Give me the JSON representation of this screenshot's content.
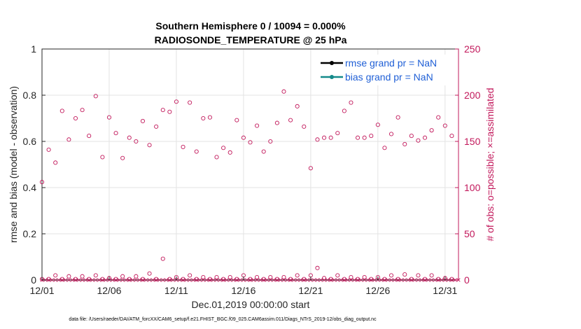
{
  "chart_data": {
    "type": "scatter",
    "title": "Southern Hemisphere 0 / 10094 = 0.000%",
    "subtitle": "RADIOSONDE_TEMPERATURE @ 25 hPa",
    "xlabel": "Dec.01,2019 00:00:00 start",
    "ylabel": "rmse and bias (model - observation)",
    "y2label": "# of obs: o=possible; ×=assimilated",
    "ylim": [
      0,
      1
    ],
    "y2lim": [
      0,
      250
    ],
    "xlim": [
      1,
      32
    ],
    "xtick_labels": [
      {
        "x": 1,
        "label": "12/01"
      },
      {
        "x": 6,
        "label": "12/06"
      },
      {
        "x": 11,
        "label": "12/11"
      },
      {
        "x": 16,
        "label": "12/16"
      },
      {
        "x": 21,
        "label": "12/21"
      },
      {
        "x": 26,
        "label": "12/26"
      },
      {
        "x": 31,
        "label": "12/31"
      }
    ],
    "ytick_labels": [
      "0",
      "0.2",
      "0.4",
      "0.6",
      "0.8",
      "1"
    ],
    "ytick_values": [
      0,
      0.2,
      0.4,
      0.6,
      0.8,
      1
    ],
    "y2tick_labels": [
      "0",
      "50",
      "100",
      "150",
      "200",
      "250"
    ],
    "y2tick_values": [
      0,
      50,
      100,
      150,
      200,
      250
    ],
    "legend": [
      {
        "label": "rmse grand pr = NaN",
        "color": "#000000"
      },
      {
        "label": "bias grand pr = NaN",
        "color": "#138a8a"
      }
    ],
    "legend_position": "top-right",
    "series": [
      {
        "name": "# obs possible (upper)",
        "marker": "circle",
        "color": "#c2185b",
        "x": [
          1,
          1.5,
          2,
          2.5,
          3,
          3.5,
          4,
          4.5,
          5,
          5.5,
          6,
          6.5,
          7,
          7.5,
          8,
          8.5,
          9,
          9.5,
          10,
          10.5,
          11,
          11.5,
          12,
          12.5,
          13,
          13.5,
          14,
          14.5,
          15,
          15.5,
          16,
          16.5,
          17,
          17.5,
          18,
          18.5,
          19,
          19.5,
          20,
          20.5,
          21,
          21.5,
          22,
          22.5,
          23,
          23.5,
          24,
          24.5,
          25,
          25.5,
          26,
          26.5,
          27,
          27.5,
          28,
          28.5,
          29,
          29.5,
          30,
          30.5,
          31,
          31.5
        ],
        "values": [
          106,
          141,
          127,
          183,
          152,
          175,
          184,
          156,
          199,
          133,
          176,
          159,
          132,
          154,
          150,
          172,
          146,
          166,
          184,
          182,
          193,
          144,
          192,
          139,
          175,
          176,
          133,
          143,
          138,
          173,
          154,
          149,
          167,
          139,
          150,
          170,
          204,
          173,
          188,
          166,
          121,
          152,
          154,
          154,
          159,
          183,
          192,
          154,
          154,
          156,
          168,
          143,
          158,
          176,
          147,
          156,
          151,
          154,
          162,
          176,
          167,
          156
        ]
      },
      {
        "name": "# obs possible (lower)",
        "marker": "circle",
        "color": "#c2185b",
        "x": [
          1,
          1.5,
          2,
          2.5,
          3,
          3.5,
          4,
          4.5,
          5,
          5.5,
          6,
          6.5,
          7,
          7.5,
          8,
          8.5,
          9,
          9.5,
          10,
          10.5,
          11,
          11.5,
          12,
          12.5,
          13,
          13.5,
          14,
          14.5,
          15,
          15.5,
          16,
          16.5,
          17,
          17.5,
          18,
          18.5,
          19,
          19.5,
          20,
          20.5,
          21,
          21.5,
          22,
          22.5,
          23,
          23.5,
          24,
          24.5,
          25,
          25.5,
          26,
          26.5,
          27,
          27.5,
          28,
          28.5,
          29,
          29.5,
          30,
          30.5,
          31,
          31.5
        ],
        "values": [
          1,
          1,
          5,
          1,
          4,
          1,
          4,
          1,
          5,
          1,
          2,
          1,
          4,
          1,
          4,
          1,
          7,
          1,
          23,
          1,
          3,
          1,
          5,
          1,
          3,
          1,
          3,
          1,
          3,
          1,
          5,
          1,
          3,
          1,
          3,
          1,
          3,
          1,
          5,
          1,
          5,
          13,
          2,
          1,
          5,
          1,
          3,
          1,
          3,
          1,
          3,
          1,
          5,
          1,
          6,
          1,
          5,
          1,
          5,
          1,
          2,
          1
        ]
      }
    ]
  },
  "footer": "data file: /Users/raeder/DAI/ATM_forcXX/CAM6_setup/f.e21.FHIST_BGC.f09_025.CAM6assim.011/Diags_NTrS_2019-12/obs_diag_output.nc",
  "colors": {
    "possible": "#c2185b",
    "assimilated": "#c2185b",
    "rmse": "#000000",
    "bias": "#138a8a",
    "legend_text": "#1f5fd6"
  }
}
